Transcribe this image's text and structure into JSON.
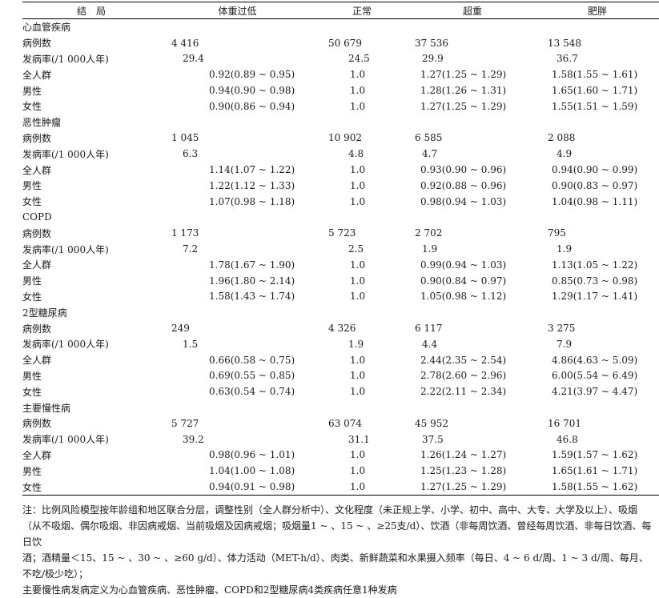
{
  "header": [
    "结　局",
    "体重过低",
    "正常",
    "超重",
    "肥胖"
  ],
  "groups": [
    {
      "name": "心血管疾病",
      "rows": [
        {
          "label": "病例数",
          "kind": "cnt",
          "values": [
            "4 416",
            "50 679",
            "37 536",
            "13 548"
          ]
        },
        {
          "label": "发病率(/1 000人年)",
          "kind": "rate",
          "values": [
            "29.4",
            "24.5",
            "29.9",
            "36.7"
          ]
        },
        {
          "label": "全人群",
          "kind": "ratio",
          "values": [
            "0.92(0.89 ~ 0.95)",
            "1.0",
            "1.27(1.25 ~ 1.29)",
            "1.58(1.55 ~ 1.61)"
          ]
        },
        {
          "label": "男性",
          "kind": "ratio",
          "values": [
            "0.94(0.90 ~ 0.98)",
            "1.0",
            "1.28(1.26 ~ 1.31)",
            "1.65(1.60 ~ 1.71)"
          ]
        },
        {
          "label": "女性",
          "kind": "ratio",
          "values": [
            "0.90(0.86 ~ 0.94)",
            "1.0",
            "1.27(1.25 ~ 1.29)",
            "1.55(1.51 ~ 1.59)"
          ]
        }
      ]
    },
    {
      "name": "恶性肿瘤",
      "rows": [
        {
          "label": "病例数",
          "kind": "cnt",
          "values": [
            "1 045",
            "10 902",
            "6 585",
            "2 088"
          ]
        },
        {
          "label": "发病率(/1 000人年)",
          "kind": "rate",
          "values": [
            "6.3",
            "4.8",
            "4.7",
            "4.9"
          ]
        },
        {
          "label": "全人群",
          "kind": "ratio",
          "values": [
            "1.14(1.07 ~ 1.22)",
            "1.0",
            "0.93(0.90 ~ 0.96)",
            "0.94(0.90 ~ 0.99)"
          ]
        },
        {
          "label": "男性",
          "kind": "ratio",
          "values": [
            "1.22(1.12 ~ 1.33)",
            "1.0",
            "0.92(0.88 ~ 0.96)",
            "0.90(0.83 ~ 0.97)"
          ]
        },
        {
          "label": "女性",
          "kind": "ratio",
          "values": [
            "1.07(0.98 ~ 1.18)",
            "1.0",
            "0.98(0.94 ~ 1.03)",
            "1.04(0.98 ~ 1.11)"
          ]
        }
      ]
    },
    {
      "name": "COPD",
      "rows": [
        {
          "label": "病例数",
          "kind": "cnt",
          "values": [
            "1 173",
            "5 723",
            "2 702",
            "795"
          ]
        },
        {
          "label": "发病率(/1 000人年)",
          "kind": "rate",
          "values": [
            "7.2",
            "2.5",
            "1.9",
            "1.9"
          ]
        },
        {
          "label": "全人群",
          "kind": "ratio",
          "values": [
            "1.78(1.67 ~ 1.90)",
            "1.0",
            "0.99(0.94 ~ 1.03)",
            "1.13(1.05 ~ 1.22)"
          ]
        },
        {
          "label": "男性",
          "kind": "ratio",
          "values": [
            "1.96(1.80 ~ 2.14)",
            "1.0",
            "0.90(0.84 ~ 0.97)",
            "0.85(0.73 ~ 0.98)"
          ]
        },
        {
          "label": "女性",
          "kind": "ratio",
          "values": [
            "1.58(1.43 ~ 1.74)",
            "1.0",
            "1.05(0.98 ~ 1.12)",
            "1.29(1.17 ~ 1.41)"
          ]
        }
      ]
    },
    {
      "name": "2型糖尿病",
      "rows": [
        {
          "label": "病例数",
          "kind": "cnt",
          "values": [
            "249",
            "4 326",
            "6 117",
            "3 275"
          ]
        },
        {
          "label": "发病率(/1 000人年)",
          "kind": "rate",
          "values": [
            "1.5",
            "1.9",
            "4.4",
            "7.9"
          ]
        },
        {
          "label": "全人群",
          "kind": "ratio",
          "values": [
            "0.66(0.58 ~ 0.75)",
            "1.0",
            "2.44(2.35 ~ 2.54)",
            "4.86(4.63 ~ 5.09)"
          ]
        },
        {
          "label": "男性",
          "kind": "ratio",
          "values": [
            "0.69(0.55 ~ 0.85)",
            "1.0",
            "2.78(2.60 ~ 2.96)",
            "6.00(5.54 ~ 6.49)"
          ]
        },
        {
          "label": "女性",
          "kind": "ratio",
          "values": [
            "0.63(0.54 ~ 0.74)",
            "1.0",
            "2.22(2.11 ~ 2.34)",
            "4.21(3.97 ~ 4.47)"
          ]
        }
      ]
    },
    {
      "name": "主要慢性病",
      "rows": [
        {
          "label": "病例数",
          "kind": "cnt",
          "values": [
            "5 727",
            "63 074",
            "45 952",
            "16 701"
          ]
        },
        {
          "label": "发病率(/1 000人年)",
          "kind": "rate",
          "values": [
            "39.2",
            "31.1",
            "37.5",
            "46.8"
          ]
        },
        {
          "label": "全人群",
          "kind": "ratio",
          "values": [
            "0.98(0.96 ~ 1.01)",
            "1.0",
            "1.26(1.24 ~ 1.27)",
            "1.59(1.57 ~ 1.62)"
          ]
        },
        {
          "label": "男性",
          "kind": "ratio",
          "values": [
            "1.04(1.00 ~ 1.08)",
            "1.0",
            "1.25(1.23 ~ 1.28)",
            "1.65(1.61 ~ 1.71)"
          ]
        },
        {
          "label": "女性",
          "kind": "ratio",
          "values": [
            "0.94(0.91 ~ 0.98)",
            "1.0",
            "1.27(1.25 ~ 1.29)",
            "1.58(1.55 ~ 1.62)"
          ]
        }
      ]
    }
  ],
  "note_lines": [
    "注：比例风险模型按年龄组和地区联合分层，调整性别（全人群分析中）、文化程度（未正规上学、小学、初中、高中、大专、大学及以上）、吸烟",
    "（从不吸烟、偶尔吸烟、非因病戒烟、当前吸烟及因病戒烟；吸烟量1 ~ 、15 ~ 、≥25支/d）、饮酒（非每周饮酒、曾经每周饮酒、非每日饮酒、每日饮",
    "酒；酒精量＜15、15 ~ 、30 ~ 、≥60 g/d）、体力活动（MET-h/d）、肉类、新鲜蔬菜和水果摄入频率（每日、4 ~ 6 d/周、1 ~ 3 d/周、每月、不吃/极少吃）；",
    "主要慢性病发病定义为心血管疾病、恶性肿瘤、COPD和2型糖尿病4类疾病任意1种发病"
  ]
}
